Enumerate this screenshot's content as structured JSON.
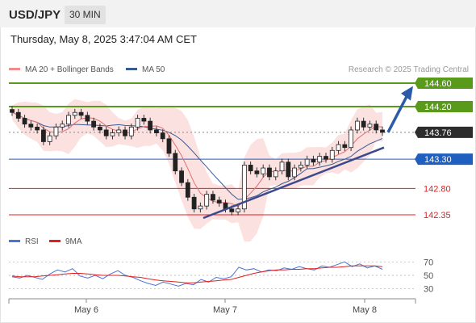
{
  "header": {
    "symbol": "USD/JPY",
    "timeframe": "30 MIN",
    "datetime": "Thursday, May 8, 2025 3:47:04 AM CET"
  },
  "legend": {
    "bb_label": "MA 20 + Bollinger Bands",
    "bb_color": "#f28c8c",
    "ma50_label": "MA 50",
    "ma50_color": "#3a5a92",
    "credit": "Research © 2025 Trading Central",
    "rsi_label": "RSI",
    "rsi_color": "#4a74d6",
    "rsi_ma_label": "9MA",
    "rsi_ma_color": "#e02020"
  },
  "chart_data": [
    {
      "type": "candlestick",
      "title": "USD/JPY 30 MIN",
      "x_ticks": [
        "May 6",
        "May 7",
        "May 8"
      ],
      "y_range": [
        142.2,
        144.7
      ],
      "current_price": 143.76,
      "levels": [
        {
          "label": "144.60",
          "value": 144.6,
          "kind": "resistance",
          "color": "#5a9a1a"
        },
        {
          "label": "144.20",
          "value": 144.2,
          "kind": "resistance",
          "color": "#5a9a1a"
        },
        {
          "label": "143.76",
          "value": 143.76,
          "kind": "last",
          "color": "#2d2d2d"
        },
        {
          "label": "143.30",
          "value": 143.3,
          "kind": "pivot",
          "color": "#1f5fbf"
        },
        {
          "label": "142.80",
          "value": 142.8,
          "kind": "support",
          "color": "#e02020"
        },
        {
          "label": "142.35",
          "value": 142.35,
          "kind": "support",
          "color": "#e02020"
        }
      ],
      "close_path": [
        144.1,
        144.0,
        143.9,
        143.85,
        143.8,
        143.6,
        143.7,
        143.85,
        143.9,
        144.05,
        144.1,
        144.05,
        143.95,
        143.85,
        143.8,
        143.7,
        143.75,
        143.8,
        143.7,
        143.85,
        144.0,
        143.95,
        143.8,
        143.75,
        143.65,
        143.4,
        143.1,
        142.9,
        142.65,
        142.45,
        142.5,
        142.7,
        142.6,
        142.55,
        142.45,
        142.4,
        142.45,
        143.2,
        143.1,
        143.05,
        143.15,
        143.0,
        143.1,
        143.25,
        143.0,
        143.15,
        143.2,
        143.3,
        143.25,
        143.35,
        143.3,
        143.45,
        143.55,
        143.5,
        143.8,
        143.95,
        143.85,
        143.9,
        143.8,
        143.76
      ],
      "trendline": {
        "start": 142.35,
        "end": 143.5
      },
      "projection": {
        "from": 143.76,
        "to": 144.55
      }
    },
    {
      "type": "line",
      "title": "RSI",
      "ylim": [
        20,
        80
      ],
      "y_ticks": [
        "70",
        "50",
        "30"
      ],
      "series": [
        {
          "name": "RSI",
          "values": [
            48,
            46,
            50,
            47,
            44,
            52,
            58,
            55,
            60,
            49,
            46,
            50,
            45,
            52,
            57,
            50,
            47,
            42,
            38,
            35,
            40,
            37,
            34,
            38,
            36,
            44,
            40,
            47,
            45,
            48,
            62,
            58,
            60,
            55,
            58,
            57,
            61,
            59,
            63,
            60,
            58,
            64,
            62,
            66,
            70,
            63,
            67,
            61,
            64,
            59
          ]
        },
        {
          "name": "9MA",
          "values": [
            49,
            48,
            48,
            48,
            49,
            50,
            51,
            52,
            53,
            53,
            52,
            51,
            50,
            50,
            50,
            49,
            48,
            47,
            45,
            43,
            42,
            41,
            40,
            39,
            39,
            40,
            41,
            42,
            43,
            44,
            47,
            50,
            53,
            55,
            57,
            58,
            58,
            59,
            59,
            60,
            60,
            61,
            62,
            62,
            63,
            64,
            64,
            64,
            64,
            63
          ]
        }
      ]
    }
  ]
}
